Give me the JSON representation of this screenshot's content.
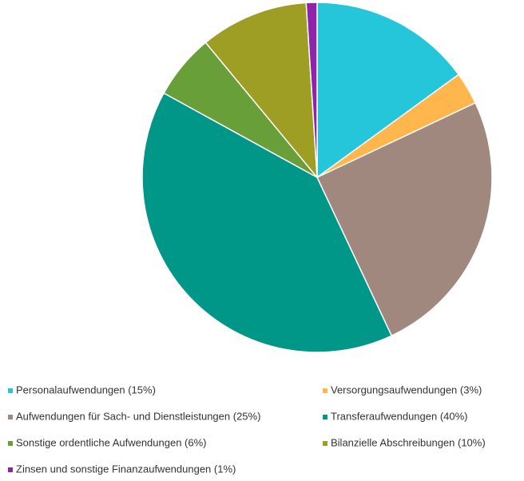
{
  "chart_data": {
    "type": "pie",
    "categories": [
      "Personalaufwendungen (15%)",
      "Versorgungsaufwendungen (3%)",
      "Aufwendungen für Sach- und Dienstleistungen (25%)",
      "Transferaufwendungen (40%)",
      "Sonstige ordentliche Aufwendungen (6%)",
      "Bilanzielle Abschreibungen (10%)",
      "Zinsen und sonstige Finanzaufwendungen (1%)"
    ],
    "values": [
      15,
      3,
      25,
      40,
      6,
      10,
      1
    ],
    "colors": [
      "#26c6da",
      "#ffb74d",
      "#a1887f",
      "#009688",
      "#689f38",
      "#9e9d24",
      "#8e24aa"
    ],
    "legend": "bottom"
  }
}
